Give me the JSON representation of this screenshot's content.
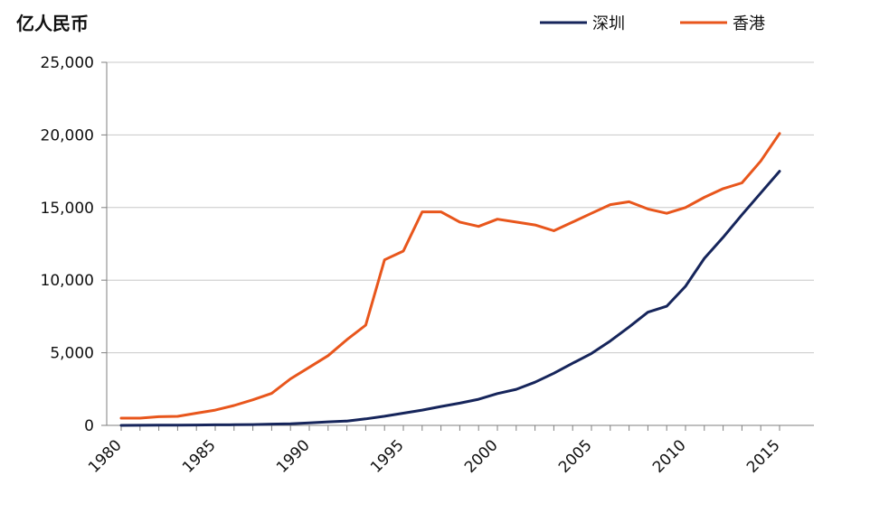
{
  "chart_data": {
    "type": "line",
    "ylabel": "亿人民币",
    "x": [
      1980,
      1981,
      1982,
      1983,
      1984,
      1985,
      1986,
      1987,
      1988,
      1989,
      1990,
      1991,
      1992,
      1993,
      1994,
      1995,
      1996,
      1997,
      1998,
      1999,
      2000,
      2001,
      2002,
      2003,
      2004,
      2005,
      2006,
      2007,
      2008,
      2009,
      2010,
      2011,
      2012,
      2013,
      2014,
      2015
    ],
    "series": [
      {
        "name": "深圳",
        "color": "#16255b",
        "values": [
          3,
          5,
          10,
          15,
          25,
          40,
          45,
          55,
          90,
          115,
          170,
          240,
          300,
          450,
          630,
          840,
          1050,
          1300,
          1530,
          1800,
          2190,
          2480,
          2970,
          3590,
          4280,
          4950,
          5810,
          6770,
          7790,
          8200,
          9580,
          11500,
          12950,
          14500,
          16000,
          17500
        ]
      },
      {
        "name": "香港",
        "color": "#e8561c",
        "values": [
          500,
          500,
          600,
          620,
          840,
          1050,
          1370,
          1760,
          2200,
          3200,
          4000,
          4800,
          5900,
          6900,
          11400,
          12000,
          14700,
          14700,
          14000,
          13700,
          14200,
          14000,
          13800,
          13400,
          14000,
          14600,
          15200,
          15400,
          14900,
          14600,
          15000,
          15700,
          16300,
          16700,
          18200,
          20100
        ]
      }
    ],
    "x_ticks": [
      "1980",
      "1985",
      "1990",
      "1995",
      "2000",
      "2005",
      "2010",
      "2015"
    ],
    "y_ticks": [
      "0",
      "5,000",
      "10,000",
      "15,000",
      "20,000",
      "25,000"
    ],
    "ylim": [
      0,
      25000
    ],
    "xlim": [
      1980,
      2015
    ],
    "grid": true,
    "legend_position": "top-right"
  }
}
